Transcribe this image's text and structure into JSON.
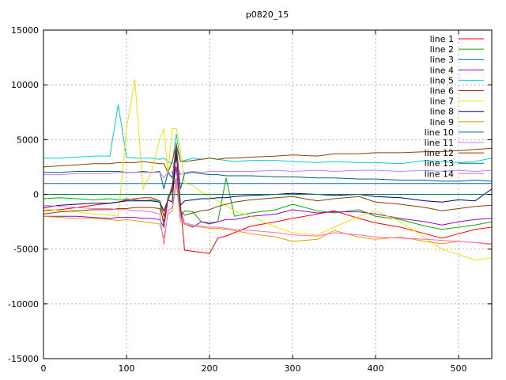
{
  "chart_data": {
    "type": "line",
    "title": "p0820_15",
    "xlabel": "",
    "ylabel": "",
    "xlim": [
      0,
      540
    ],
    "ylim": [
      -15000,
      15000
    ],
    "x_ticks": [
      0,
      100,
      200,
      300,
      400,
      500
    ],
    "y_ticks": [
      -15000,
      -10000,
      -5000,
      0,
      5000,
      10000,
      15000
    ],
    "grid": true,
    "legend_position": "top-right",
    "x": [
      0,
      20,
      40,
      60,
      80,
      90,
      100,
      110,
      120,
      130,
      140,
      145,
      150,
      155,
      160,
      165,
      170,
      180,
      190,
      200,
      210,
      220,
      230,
      250,
      280,
      300,
      330,
      350,
      380,
      400,
      430,
      460,
      480,
      500,
      520,
      540
    ],
    "series": [
      {
        "name": "line 1",
        "color": "#ff0000",
        "values": [
          -1500,
          -1400,
          -1200,
          -1000,
          -800,
          -700,
          -500,
          -400,
          -300,
          -300,
          -600,
          -2000,
          -500,
          800,
          3500,
          -1000,
          -5100,
          -5200,
          -5300,
          -5400,
          -4000,
          -3800,
          -3500,
          -2900,
          -2500,
          -2200,
          -1800,
          -1500,
          -2200,
          -2600,
          -3000,
          -3600,
          -4000,
          -3600,
          -3200,
          -3000
        ]
      },
      {
        "name": "line 2",
        "color": "#00b000",
        "values": [
          -400,
          -300,
          -400,
          -500,
          -400,
          -500,
          -400,
          -500,
          -600,
          -500,
          -600,
          -3000,
          -200,
          500,
          1500,
          -2000,
          -1500,
          -1600,
          -2500,
          -2600,
          -2500,
          1500,
          -2000,
          -1700,
          -1400,
          -900,
          -1500,
          -1700,
          -1400,
          -2000,
          -2300,
          -2900,
          -3200,
          -3000,
          -2800,
          -2500
        ]
      },
      {
        "name": "line 3",
        "color": "#0060c0",
        "values": [
          1000,
          1000,
          1000,
          1000,
          1000,
          1000,
          1000,
          1000,
          1000,
          1000,
          1000,
          1000,
          1000,
          1000,
          1000,
          1000,
          1000,
          1000,
          1000,
          1000,
          1000,
          1000,
          1000,
          1000,
          1000,
          1000,
          1000,
          1000,
          1000,
          1000,
          1000,
          1000,
          1000,
          1000,
          1000,
          1000
        ]
      },
      {
        "name": "line 4",
        "color": "#9900cc",
        "values": [
          -2000,
          -2000,
          -2000,
          -2100,
          -2200,
          -2100,
          -2100,
          -2100,
          -2200,
          -2200,
          -2300,
          -3000,
          -500,
          500,
          2500,
          -1500,
          -2700,
          -3000,
          -2500,
          -2700,
          -2500,
          -2300,
          -2300,
          -2000,
          -1800,
          -1400,
          -1700,
          -1600,
          -1600,
          -1800,
          -2200,
          -2500,
          -2800,
          -2500,
          -2300,
          -2200
        ]
      },
      {
        "name": "line 5",
        "color": "#00d0d0",
        "values": [
          3300,
          3300,
          3400,
          3500,
          3500,
          8200,
          3400,
          3300,
          3300,
          3300,
          3200,
          3300,
          3000,
          2800,
          5500,
          3000,
          3100,
          3300,
          3200,
          3300,
          3200,
          3100,
          3000,
          3100,
          3100,
          3000,
          2900,
          3000,
          2900,
          2900,
          2800,
          3100,
          3000,
          2900,
          3000,
          3300
        ]
      },
      {
        "name": "line 6",
        "color": "#8b4000",
        "values": [
          2500,
          2600,
          2700,
          2800,
          2800,
          2900,
          2900,
          2900,
          3000,
          2900,
          2800,
          2800,
          2000,
          3000,
          4500,
          3000,
          3000,
          3100,
          3200,
          3300,
          3200,
          3300,
          3300,
          3400,
          3500,
          3600,
          3500,
          3700,
          3700,
          3800,
          3800,
          3900,
          3900,
          4000,
          4100,
          4200
        ]
      },
      {
        "name": "line 7",
        "color": "#e8e800",
        "values": [
          -1300,
          -1500,
          -1600,
          -1800,
          -1900,
          -2000,
          6000,
          10500,
          500,
          2000,
          5000,
          6000,
          2000,
          6000,
          6000,
          4000,
          1000,
          800,
          200,
          -200,
          -600,
          -1000,
          -1500,
          -2000,
          -3000,
          -3500,
          -3700,
          -3000,
          -2000,
          -1500,
          -2500,
          -4000,
          -5000,
          -5500,
          -6000,
          -5800
        ]
      },
      {
        "name": "line 8",
        "color": "#000080",
        "values": [
          -1200,
          -1000,
          -900,
          -800,
          -800,
          -700,
          -600,
          -600,
          -600,
          -600,
          -700,
          -1500,
          -500,
          -700,
          4000,
          -1000,
          -600,
          -500,
          -400,
          -400,
          -300,
          -300,
          -200,
          -100,
          0,
          100,
          0,
          -100,
          0,
          -200,
          -300,
          -600,
          -700,
          -500,
          -600,
          500
        ]
      },
      {
        "name": "line 9",
        "color": "#e0a000",
        "values": [
          -2000,
          -2100,
          -2200,
          -2200,
          -2300,
          -2400,
          -2300,
          -2400,
          -2500,
          -2600,
          -2700,
          -4000,
          -1800,
          -1500,
          1000,
          -2500,
          -2700,
          -2900,
          -3000,
          -3100,
          -3100,
          -3200,
          -3300,
          -3600,
          -3900,
          -4300,
          -4100,
          -3300,
          -3900,
          -4100,
          -3900,
          -4300,
          -4500,
          -4300,
          -4400,
          -4600
        ]
      },
      {
        "name": "line 10",
        "color": "#006080",
        "values": [
          2000,
          2000,
          2100,
          2100,
          2100,
          2100,
          2000,
          2000,
          2100,
          2000,
          2100,
          500,
          2000,
          1500,
          4500,
          500,
          1900,
          2000,
          1900,
          1800,
          1800,
          1700,
          1700,
          1700,
          1600,
          1600,
          1500,
          1500,
          1400,
          1400,
          1300,
          1300,
          1200,
          1200,
          1300,
          1200
        ]
      },
      {
        "name": "line 11",
        "color": "#c080ff",
        "values": [
          1800,
          1800,
          1900,
          1900,
          1900,
          2000,
          2000,
          2000,
          2000,
          2000,
          2000,
          1500,
          2000,
          2000,
          3000,
          1800,
          2000,
          2100,
          2000,
          2100,
          2100,
          2100,
          2100,
          2100,
          2200,
          2100,
          2200,
          2100,
          2200,
          2200,
          2100,
          2200,
          2100,
          2200,
          2100,
          2200
        ]
      },
      {
        "name": "line 12",
        "color": "#804000",
        "values": [
          -1800,
          -1600,
          -1500,
          -1400,
          -1400,
          -1300,
          -1300,
          -1200,
          -1200,
          -1200,
          -1300,
          -2500,
          -400,
          300,
          4700,
          -1500,
          -1900,
          -1700,
          -1500,
          -1400,
          -1100,
          -900,
          -700,
          -500,
          -300,
          -200,
          -600,
          -400,
          -200,
          -700,
          -900,
          -1200,
          -1500,
          -1300,
          -1100,
          -1000
        ]
      },
      {
        "name": "line 13",
        "color": "#008060",
        "values": [
          0,
          0,
          0,
          0,
          0,
          0,
          0,
          0,
          0,
          0,
          0,
          0,
          0,
          0,
          0,
          0,
          0,
          0,
          0,
          0,
          0,
          0,
          0,
          0,
          0,
          0,
          0,
          0,
          0,
          0,
          0,
          0,
          0,
          0,
          0,
          0
        ]
      },
      {
        "name": "line 14",
        "color": "#ff66cc",
        "values": [
          -1000,
          -1100,
          -1200,
          -1300,
          -1300,
          -1400,
          -1400,
          -1500,
          -1500,
          -1600,
          -1800,
          -4600,
          -1500,
          -1200,
          1500,
          -2200,
          -2600,
          -2800,
          -2900,
          -3000,
          -3000,
          -3100,
          -3200,
          -3300,
          -3500,
          -3700,
          -3800,
          -3500,
          -3700,
          -3900,
          -4000,
          -4100,
          -4200,
          -4300,
          -4400,
          -4500
        ]
      }
    ]
  }
}
